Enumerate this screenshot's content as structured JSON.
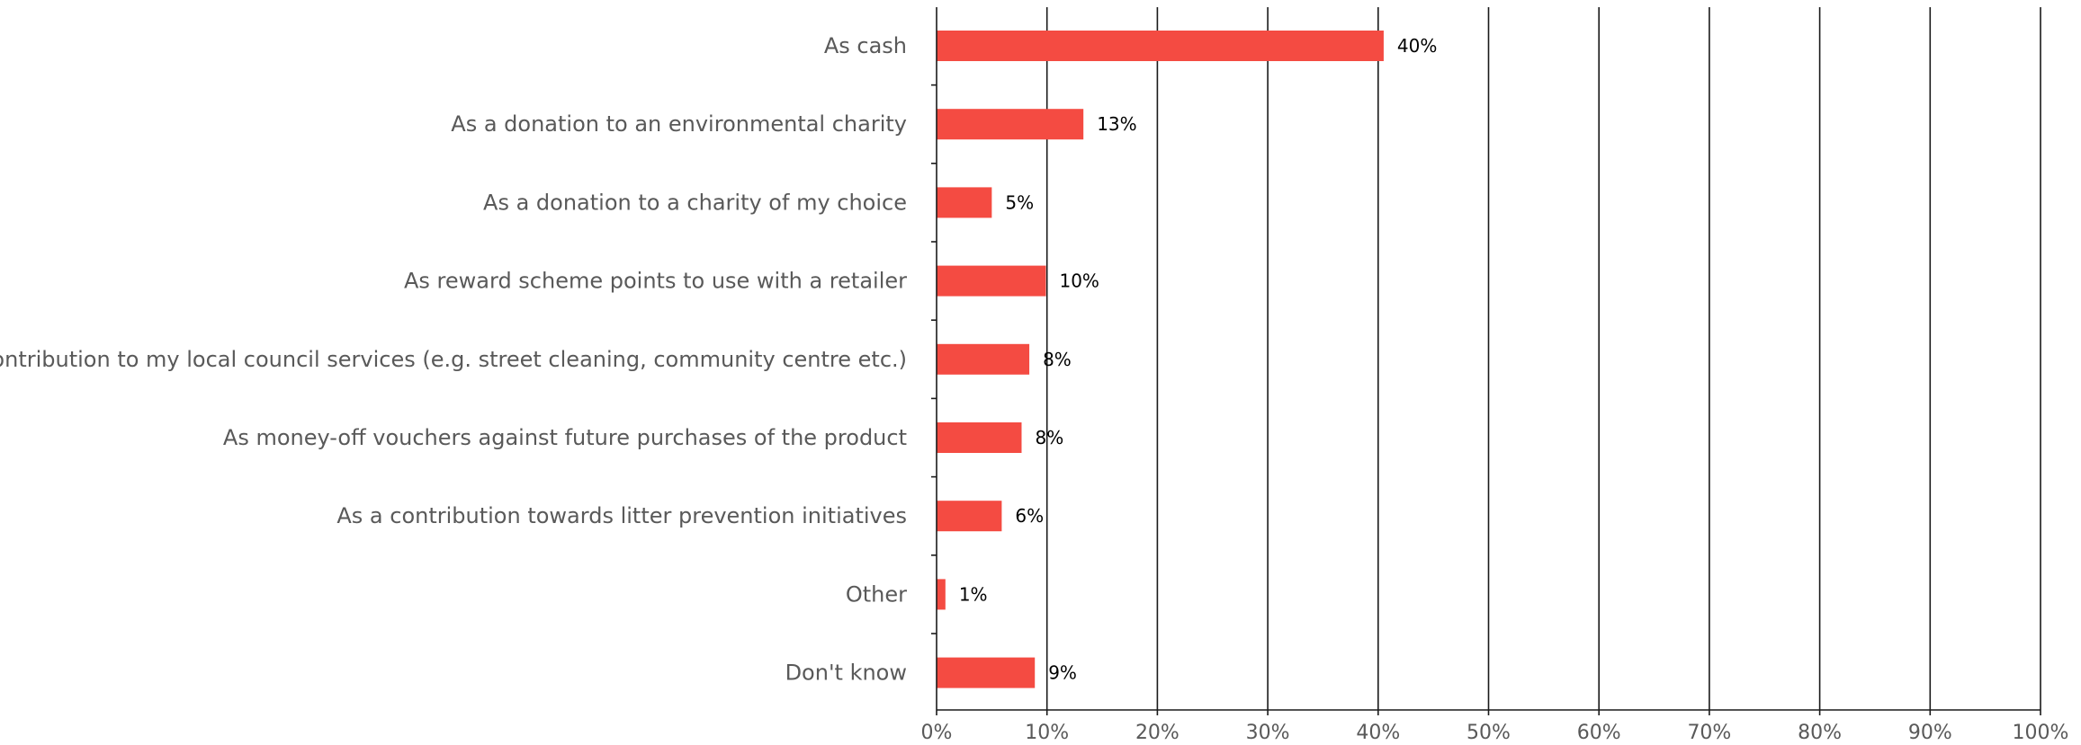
{
  "chart_data": {
    "type": "bar",
    "orientation": "horizontal",
    "categories": [
      "As cash",
      "As a donation to an environmental charity",
      "As a donation to a charity of my choice",
      "As reward scheme points to use with a retailer",
      "As a contribution to my local council services (e.g. street cleaning, community centre etc.)",
      "As money-off vouchers against future purchases of the product",
      "As a contribution towards litter prevention initiatives",
      "Other",
      "Don't know"
    ],
    "values": [
      40.5,
      13.3,
      5.0,
      9.9,
      8.4,
      7.7,
      5.9,
      0.8,
      8.9
    ],
    "data_labels": [
      "40%",
      "13%",
      "5%",
      "10%",
      "8%",
      "8%",
      "6%",
      "1%",
      "9%"
    ],
    "xlim": [
      0,
      100
    ],
    "x_ticks": [
      0,
      10,
      20,
      30,
      40,
      50,
      60,
      70,
      80,
      90,
      100
    ],
    "x_tick_labels": [
      "0%",
      "10%",
      "20%",
      "30%",
      "40%",
      "50%",
      "60%",
      "70%",
      "80%",
      "90%",
      "100%"
    ],
    "grid": "vertical",
    "legend": "none",
    "title": "",
    "xlabel": "",
    "ylabel": "",
    "colors": {
      "bar": "#F44B42",
      "grid": "#1a1a1a",
      "category_text": "#595959",
      "data_label_text": "#000000"
    }
  }
}
